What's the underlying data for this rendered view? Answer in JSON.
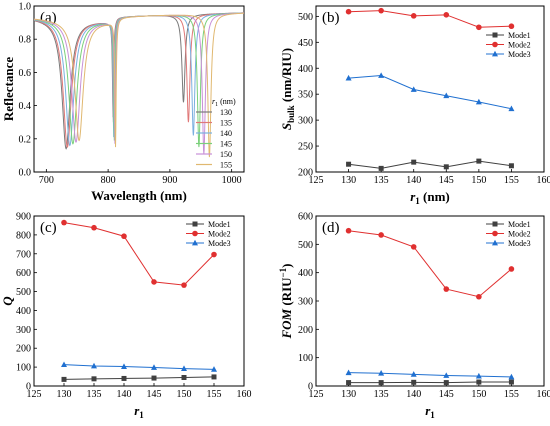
{
  "chart_data": [
    {
      "type": "line",
      "panel_label": "(a)",
      "xlabel": "Wavelength (nm)",
      "ylabel": "Reflectance",
      "xlim": [
        680,
        1020
      ],
      "ylim": [
        0.0,
        1.0
      ],
      "xticks": [
        "700",
        "800",
        "900",
        "1000"
      ],
      "xtick_values": [
        700,
        800,
        900,
        1000
      ],
      "yticks": [
        "0.0",
        "0.2",
        "0.4",
        "0.6",
        "0.8",
        "1.0"
      ],
      "ytick_values": [
        0.0,
        0.2,
        0.4,
        0.6,
        0.8,
        1.0
      ],
      "legend_title": "r",
      "legend_title_sub": "1",
      "legend_title_unit": " (nm)",
      "legend": "right",
      "series": [
        {
          "name": "130",
          "color": "#7a7a7a",
          "dips": [
            [
              732,
              0.14,
              8
            ],
            [
              808,
              0.33,
              1.2
            ],
            [
              922,
              0.42,
              3
            ]
          ]
        },
        {
          "name": "135",
          "color": "#e07878",
          "dips": [
            [
              734,
              0.15,
              8
            ],
            [
              808.5,
              0.3,
              1.2
            ],
            [
              930,
              0.3,
              3
            ]
          ]
        },
        {
          "name": "140",
          "color": "#7ab0e0",
          "dips": [
            [
              738,
              0.16,
              8
            ],
            [
              809,
              0.21,
              1.2
            ],
            [
              938,
              0.22,
              3
            ]
          ]
        },
        {
          "name": "145",
          "color": "#7ad07a",
          "dips": [
            [
              743,
              0.17,
              8
            ],
            [
              810,
              0.19,
              1.2
            ],
            [
              947,
              0.15,
              3
            ]
          ]
        },
        {
          "name": "150",
          "color": "#c890d8",
          "dips": [
            [
              748,
              0.18,
              8
            ],
            [
              811,
              0.17,
              1.2
            ],
            [
              955,
              0.11,
              3
            ]
          ]
        },
        {
          "name": "155",
          "color": "#e0b870",
          "dips": [
            [
              753,
              0.19,
              8
            ],
            [
              812,
              0.15,
              1.2
            ],
            [
              964,
              0.09,
              3
            ]
          ]
        }
      ]
    },
    {
      "type": "line",
      "panel_label": "(b)",
      "xlabel": "r",
      "xlabel_sub": "1",
      "xlabel_unit": " (nm)",
      "ylabel": "S",
      "ylabel_sub": "bulk",
      "ylabel_unit": " (nm/RIU)",
      "xlim": [
        125,
        160
      ],
      "ylim": [
        200,
        520
      ],
      "xticks": [
        "125",
        "130",
        "135",
        "140",
        "145",
        "150",
        "155",
        "160"
      ],
      "xtick_values": [
        125,
        130,
        135,
        140,
        145,
        150,
        155,
        160
      ],
      "yticks": [
        "200",
        "250",
        "300",
        "350",
        "400",
        "450",
        "500"
      ],
      "ytick_values": [
        200,
        250,
        300,
        350,
        400,
        450,
        500
      ],
      "x": [
        130,
        135,
        140,
        145,
        150,
        155
      ],
      "legend": "right",
      "series": [
        {
          "name": "Mode1",
          "color": "#404040",
          "marker": "square",
          "values": [
            215,
            207,
            219,
            210,
            221,
            212
          ]
        },
        {
          "name": "Mode2",
          "color": "#e03030",
          "marker": "circle",
          "values": [
            509,
            511,
            501,
            503,
            479,
            481
          ]
        },
        {
          "name": "Mode3",
          "color": "#2070d0",
          "marker": "triangle",
          "values": [
            381,
            386,
            359,
            347,
            335,
            322
          ]
        }
      ]
    },
    {
      "type": "line",
      "panel_label": "(c)",
      "xlabel": "r",
      "xlabel_sub": "1",
      "xlabel_unit": "",
      "ylabel": "Q",
      "xlim": [
        125,
        160
      ],
      "ylim": [
        0,
        900
      ],
      "xticks": [
        "125",
        "130",
        "135",
        "140",
        "145",
        "150",
        "155",
        "160"
      ],
      "xtick_values": [
        125,
        130,
        135,
        140,
        145,
        150,
        155,
        160
      ],
      "yticks": [
        "0",
        "100",
        "200",
        "300",
        "400",
        "500",
        "600",
        "700",
        "800",
        "900"
      ],
      "ytick_values": [
        0,
        100,
        200,
        300,
        400,
        500,
        600,
        700,
        800,
        900
      ],
      "x": [
        130,
        135,
        140,
        145,
        150,
        155
      ],
      "legend": "top-right",
      "series": [
        {
          "name": "Mode1",
          "color": "#404040",
          "marker": "square",
          "values": [
            35,
            38,
            40,
            42,
            45,
            48
          ]
        },
        {
          "name": "Mode2",
          "color": "#e03030",
          "marker": "circle",
          "values": [
            865,
            838,
            793,
            551,
            534,
            696
          ]
        },
        {
          "name": "Mode3",
          "color": "#2070d0",
          "marker": "triangle",
          "values": [
            113,
            106,
            103,
            98,
            92,
            88
          ]
        }
      ]
    },
    {
      "type": "line",
      "panel_label": "(d)",
      "xlabel": "r",
      "xlabel_sub": "1",
      "xlabel_unit": "",
      "ylabel": "FOM",
      "ylabel_unit": " (RIU",
      "ylabel_sup": "−1",
      "ylabel_close": ")",
      "xlim": [
        125,
        160
      ],
      "ylim": [
        0,
        600
      ],
      "xticks": [
        "125",
        "130",
        "135",
        "140",
        "145",
        "150",
        "155",
        "160"
      ],
      "xtick_values": [
        125,
        130,
        135,
        140,
        145,
        150,
        155,
        160
      ],
      "yticks": [
        "0",
        "100",
        "200",
        "300",
        "400",
        "500",
        "600"
      ],
      "ytick_values": [
        0,
        100,
        200,
        300,
        400,
        500,
        600
      ],
      "x": [
        130,
        135,
        140,
        145,
        150,
        155
      ],
      "legend": "top-right",
      "series": [
        {
          "name": "Mode1",
          "color": "#404040",
          "marker": "square",
          "values": [
            12,
            12,
            13,
            12,
            14,
            14
          ]
        },
        {
          "name": "Mode2",
          "color": "#e03030",
          "marker": "circle",
          "values": [
            548,
            533,
            491,
            342,
            315,
            413
          ]
        },
        {
          "name": "Mode3",
          "color": "#2070d0",
          "marker": "triangle",
          "values": [
            47,
            45,
            41,
            37,
            35,
            32
          ]
        }
      ]
    }
  ]
}
